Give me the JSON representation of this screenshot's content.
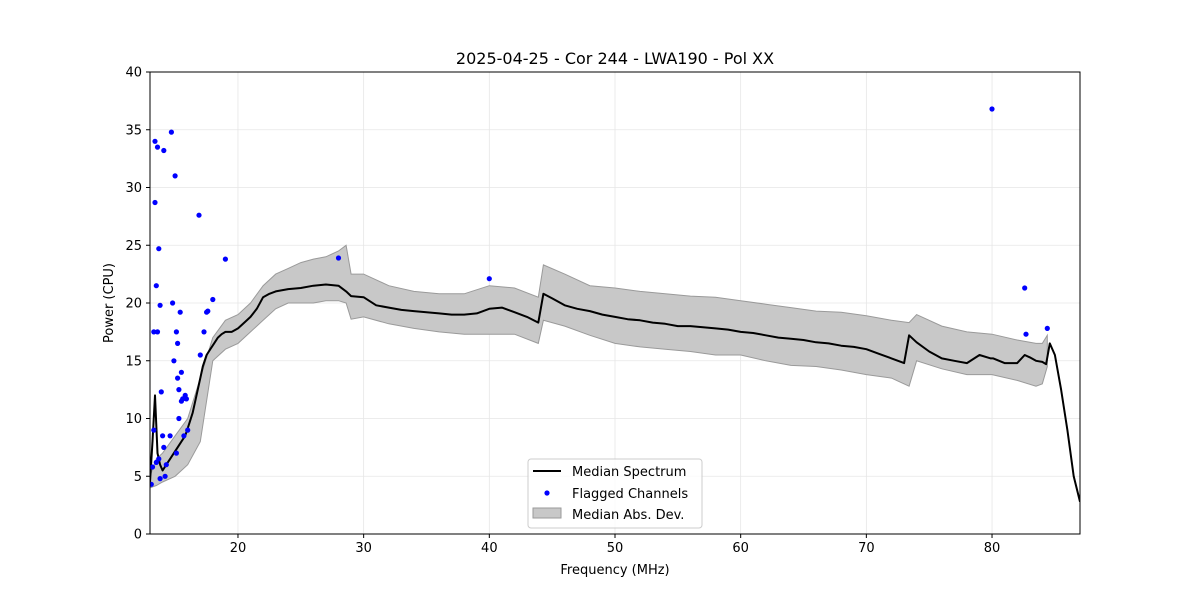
{
  "chart_data": {
    "type": "line",
    "title": "2025-04-25 - Cor 244 - LWA190 - Pol XX",
    "xlabel": "Frequency (MHz)",
    "ylabel": "Power (CPU)",
    "xlim": [
      13,
      87
    ],
    "ylim": [
      0,
      40
    ],
    "xticks": [
      20,
      30,
      40,
      50,
      60,
      70,
      80
    ],
    "yticks": [
      0,
      5,
      10,
      15,
      20,
      25,
      30,
      35,
      40
    ],
    "grid": true,
    "legend_position": "bottom-center",
    "colors": {
      "median": "#000000",
      "flagged": "#0000ff",
      "mad_fill": "#c8c8c8",
      "mad_edge": "#9a9a9a"
    },
    "legend": [
      {
        "label": "Median Spectrum",
        "kind": "line"
      },
      {
        "label": "Flagged Channels",
        "kind": "marker"
      },
      {
        "label": "Median Abs. Dev.",
        "kind": "patch"
      }
    ],
    "series": [
      {
        "name": "Median Spectrum",
        "x": [
          13.0,
          13.2,
          13.4,
          13.6,
          13.8,
          14.0,
          14.3,
          14.6,
          14.9,
          15.2,
          15.5,
          15.8,
          16.1,
          16.4,
          16.7,
          17.0,
          17.2,
          17.5,
          17.8,
          18.1,
          18.4,
          18.7,
          19.0,
          19.5,
          20.0,
          20.5,
          21.0,
          21.5,
          22.0,
          22.5,
          23.0,
          24.0,
          25.0,
          26.0,
          27.0,
          28.0,
          28.6,
          29.0,
          30.0,
          31.0,
          32.0,
          33.0,
          34.0,
          35.0,
          36.0,
          37.0,
          38.0,
          39.0,
          40.0,
          41.0,
          42.0,
          43.0,
          43.9,
          44.3,
          45.0,
          46.0,
          47.0,
          48.0,
          49.0,
          50.0,
          51.0,
          52.0,
          53.0,
          54.0,
          55.0,
          56.0,
          57.0,
          58.0,
          59.0,
          60.0,
          61.0,
          62.0,
          63.0,
          64.0,
          65.0,
          66.0,
          67.0,
          68.0,
          69.0,
          70.0,
          71.0,
          72.0,
          73.0,
          73.4,
          74.0,
          75.0,
          76.0,
          77.0,
          78.0,
          79.0,
          79.9,
          80.1,
          81.0,
          82.0,
          82.6,
          83.0,
          83.5,
          84.0,
          84.3,
          84.6,
          85.0,
          85.5,
          86.0,
          86.5,
          87.0
        ],
        "values": [
          4.5,
          8.0,
          12.0,
          7.0,
          6.0,
          5.5,
          6.0,
          6.5,
          7.0,
          7.5,
          8.0,
          8.5,
          9.5,
          10.5,
          12.0,
          13.5,
          14.5,
          15.5,
          16.0,
          16.5,
          17.0,
          17.3,
          17.5,
          17.5,
          17.8,
          18.3,
          18.8,
          19.5,
          20.5,
          20.8,
          21.0,
          21.2,
          21.3,
          21.5,
          21.6,
          21.5,
          21.0,
          20.6,
          20.5,
          19.8,
          19.6,
          19.4,
          19.3,
          19.2,
          19.1,
          19.0,
          19.0,
          19.1,
          19.5,
          19.6,
          19.2,
          18.8,
          18.3,
          20.8,
          20.4,
          19.8,
          19.5,
          19.3,
          19.0,
          18.8,
          18.6,
          18.5,
          18.3,
          18.2,
          18.0,
          18.0,
          17.9,
          17.8,
          17.7,
          17.5,
          17.4,
          17.2,
          17.0,
          16.9,
          16.8,
          16.6,
          16.5,
          16.3,
          16.2,
          16.0,
          15.6,
          15.2,
          14.8,
          17.2,
          16.6,
          15.8,
          15.2,
          15.0,
          14.8,
          15.5,
          15.2,
          15.2,
          14.8,
          14.8,
          15.5,
          15.3,
          15.0,
          14.9,
          14.7,
          16.5,
          15.5,
          12.5,
          9.0,
          5.0,
          2.8
        ]
      },
      {
        "name": "Median Abs. Dev.",
        "x": [
          13.0,
          13.5,
          14.0,
          15.0,
          16.0,
          17.0,
          18.0,
          19.0,
          20.0,
          21.0,
          22.0,
          23.0,
          24.0,
          25.0,
          26.0,
          27.0,
          28.0,
          28.6,
          29.0,
          30.0,
          32.0,
          34.0,
          36.0,
          38.0,
          40.0,
          42.0,
          43.9,
          44.3,
          46.0,
          48.0,
          50.0,
          52.0,
          54.0,
          56.0,
          58.0,
          60.0,
          62.0,
          64.0,
          66.0,
          68.0,
          70.0,
          72.0,
          73.4,
          74.0,
          76.0,
          78.0,
          80.0,
          82.0,
          83.5,
          84.0,
          84.4
        ],
        "lower": [
          4.0,
          4.2,
          4.5,
          5.0,
          6.0,
          8.0,
          15.0,
          16.0,
          16.5,
          17.5,
          18.5,
          19.5,
          20.0,
          20.0,
          20.0,
          20.2,
          20.2,
          20.0,
          18.6,
          18.8,
          18.2,
          17.8,
          17.5,
          17.3,
          17.3,
          17.3,
          16.5,
          18.5,
          18.0,
          17.2,
          16.5,
          16.2,
          16.0,
          15.8,
          15.5,
          15.5,
          15.0,
          14.6,
          14.5,
          14.2,
          13.8,
          13.5,
          12.8,
          15.0,
          14.3,
          13.8,
          13.8,
          13.3,
          12.8,
          13.0,
          14.5
        ],
        "upper": [
          5.0,
          6.5,
          7.0,
          8.5,
          10.0,
          13.5,
          17.0,
          18.5,
          19.0,
          20.0,
          21.5,
          22.5,
          23.0,
          23.5,
          23.8,
          24.0,
          24.5,
          25.0,
          22.5,
          22.5,
          21.5,
          21.0,
          20.8,
          20.8,
          21.5,
          21.3,
          20.5,
          23.3,
          22.5,
          21.5,
          21.3,
          21.0,
          20.8,
          20.6,
          20.5,
          20.2,
          19.9,
          19.6,
          19.3,
          19.2,
          18.9,
          18.5,
          18.3,
          19.0,
          18.0,
          17.5,
          17.3,
          16.8,
          16.5,
          16.5,
          17.2
        ]
      },
      {
        "name": "Flagged Channels",
        "x": [
          13.1,
          13.2,
          13.3,
          13.3,
          13.4,
          13.4,
          13.5,
          13.5,
          13.6,
          13.6,
          13.7,
          13.7,
          13.8,
          13.8,
          13.9,
          14.0,
          14.1,
          14.1,
          14.2,
          14.3,
          14.6,
          14.7,
          14.8,
          14.9,
          15.0,
          15.1,
          15.1,
          15.2,
          15.2,
          15.3,
          15.3,
          15.4,
          15.5,
          15.5,
          15.6,
          15.7,
          15.8,
          15.9,
          16.0,
          16.9,
          17.0,
          17.3,
          17.5,
          17.6,
          18.0,
          19.0,
          28.0,
          40.0,
          80.0,
          82.6,
          82.7,
          84.4
        ],
        "values": [
          4.3,
          5.8,
          9.0,
          17.5,
          28.7,
          34.0,
          6.2,
          21.5,
          33.5,
          17.5,
          24.7,
          6.5,
          19.8,
          4.8,
          12.3,
          8.5,
          33.2,
          7.5,
          5.0,
          6.0,
          8.5,
          34.8,
          20.0,
          15.0,
          31.0,
          7.0,
          17.5,
          13.5,
          16.5,
          12.5,
          10.0,
          19.2,
          11.5,
          14.0,
          11.7,
          8.5,
          12.0,
          11.7,
          9.0,
          27.6,
          15.5,
          17.5,
          19.2,
          19.3,
          20.3,
          23.8,
          23.9,
          22.1,
          36.8,
          21.3,
          17.3,
          17.8
        ]
      }
    ]
  }
}
